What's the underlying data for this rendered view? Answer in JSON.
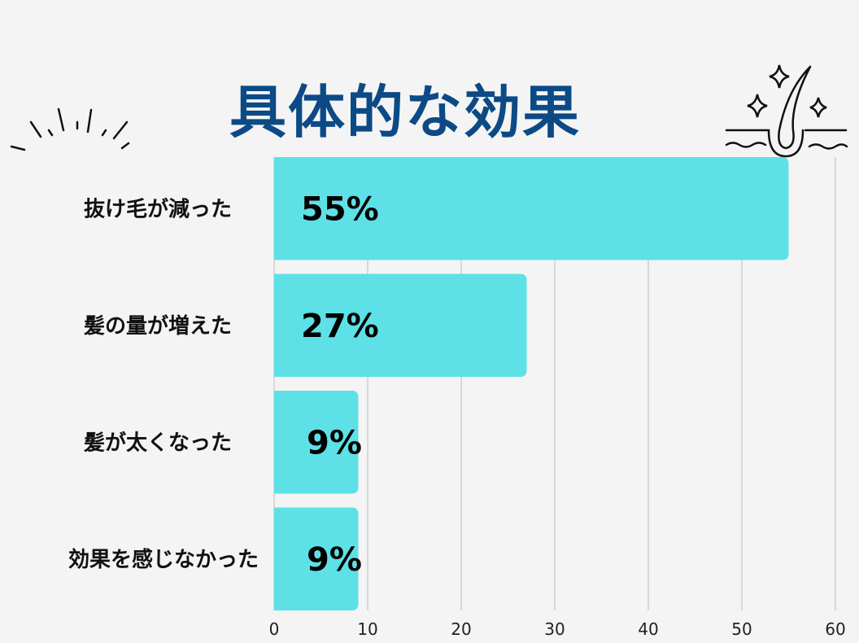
{
  "chart_data": {
    "type": "bar",
    "orientation": "horizontal",
    "title": "具体的な効果",
    "categories": [
      "抜け毛が減った",
      "髪の量が増えた",
      "髪が太くなった",
      "効果を感じなかった"
    ],
    "values": [
      55,
      27,
      9,
      9
    ],
    "data_labels": [
      "55%",
      "27%",
      "9%",
      "9%"
    ],
    "xlim": [
      0,
      60
    ],
    "xticks": [
      0,
      10,
      20,
      30,
      40,
      50,
      60
    ],
    "xlabel": "",
    "ylabel": "",
    "grid": "vertical",
    "bar_color": "#5de1e6",
    "title_color": "#0c4a86",
    "decorations": [
      "burst-lines-icon",
      "hair-follicle-sparkle-icon"
    ]
  }
}
